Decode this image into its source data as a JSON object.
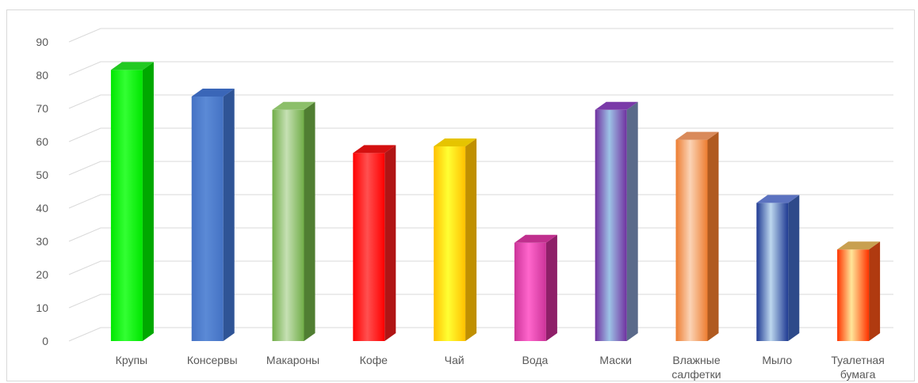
{
  "chart_data": {
    "type": "bar",
    "style": "3d-column",
    "categories": [
      "Крупы",
      "Консервы",
      "Макароны",
      "Кофе",
      "Чай",
      "Вода",
      "Маски",
      "Влажные салфетки",
      "Мыло",
      "Туалетная бумага"
    ],
    "category_lines": [
      [
        "Крупы"
      ],
      [
        "Консервы"
      ],
      [
        "Макароны"
      ],
      [
        "Кофе"
      ],
      [
        "Чай"
      ],
      [
        "Вода"
      ],
      [
        "Маски"
      ],
      [
        "Влажные",
        "салфетки"
      ],
      [
        "Мыло"
      ],
      [
        "Туалетная",
        "бумага"
      ]
    ],
    "values": [
      83,
      75,
      71,
      58,
      60,
      31,
      71,
      62,
      43,
      29
    ],
    "ylim": [
      0,
      90
    ],
    "yticks": [
      0,
      10,
      20,
      30,
      40,
      50,
      60,
      70,
      80,
      90
    ],
    "grid": true,
    "legend": "none",
    "title": "",
    "xlabel": "",
    "ylabel": "",
    "bar_colors": [
      {
        "light": "#33ff33",
        "main": "#00e600",
        "side": "#00a800",
        "top": "#22c922"
      },
      {
        "light": "#5b8ad6",
        "main": "#4472c4",
        "side": "#2f5496",
        "top": "#3a66b8"
      },
      {
        "light": "#c6e0b4",
        "main": "#70ad47",
        "side": "#507e32",
        "top": "#8cbf6a"
      },
      {
        "light": "#ff5050",
        "main": "#ff0000",
        "side": "#b01515",
        "top": "#d41010"
      },
      {
        "light": "#ffff33",
        "main": "#ffc000",
        "side": "#c09000",
        "top": "#e6c400"
      },
      {
        "light": "#ff66cc",
        "main": "#cc3399",
        "side": "#8e1f68",
        "top": "#c02f8e"
      },
      {
        "light": "#9dc3e6",
        "main": "#7030a0",
        "side": "#5a6a8a",
        "top": "#7a3aa8"
      },
      {
        "light": "#fbd3b5",
        "main": "#ed7d31",
        "side": "#b05a20",
        "top": "#d98a5a"
      },
      {
        "light": "#bdd7ee",
        "main": "#1f3a93",
        "side": "#2e4a8a",
        "top": "#5b72c0"
      },
      {
        "light": "#ffe699",
        "main": "#ff3300",
        "side": "#b03a10",
        "top": "#c8a050"
      }
    ]
  }
}
